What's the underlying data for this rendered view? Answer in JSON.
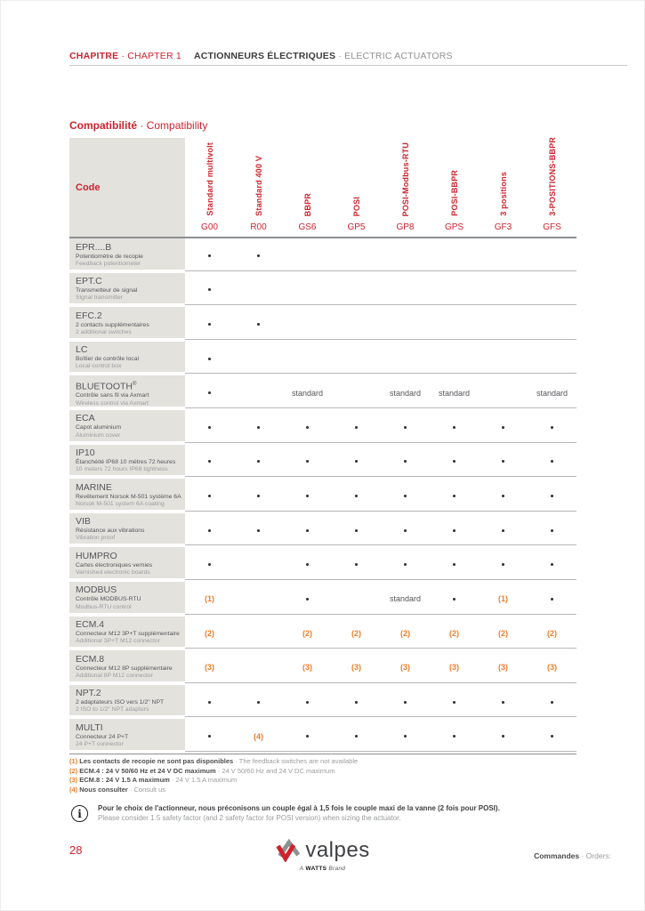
{
  "header": {
    "chapter_fr": "CHAPITRE",
    "chapter_en": " · CHAPTER 1",
    "title_fr": "ACTIONNEURS ÉLECTRIQUES",
    "title_en": " · ELECTRIC ACTUATORS"
  },
  "section_title": {
    "fr": "Compatibilité",
    "en": " · Compatibility"
  },
  "table": {
    "code_header": "Code",
    "columns": [
      {
        "label": "Standard multivolt",
        "code": "G00"
      },
      {
        "label": "Standard 400 V",
        "code": "R00"
      },
      {
        "label": "BBPR",
        "code": "GS6"
      },
      {
        "label": "POSI",
        "code": "GP5"
      },
      {
        "label": "POSI-Modbus-RTU",
        "code": "GP8"
      },
      {
        "label": "POSI-BBPR",
        "code": "GPS"
      },
      {
        "label": "3 positions",
        "code": "GF3"
      },
      {
        "label": "3-POSITIONS-BBPR",
        "code": "GFS"
      }
    ],
    "rows": [
      {
        "code": "EPR....B",
        "fr": "Potentiomètre de recopie",
        "en": "Feedback potentiometer",
        "cells": [
          "dot",
          "dot",
          "",
          "",
          "",
          "",
          "",
          ""
        ]
      },
      {
        "code": "EPT.C",
        "fr": "Transmetteur de signal",
        "en": "Signal transmitter",
        "cells": [
          "dot",
          "",
          "",
          "",
          "",
          "",
          "",
          ""
        ]
      },
      {
        "code": "EFC.2",
        "fr": "2 contacts supplémentaires",
        "en": "2 additional switches",
        "cells": [
          "dot",
          "dot",
          "",
          "",
          "",
          "",
          "",
          ""
        ]
      },
      {
        "code": "LC",
        "fr": "Boîtier de contrôle local",
        "en": "Local control box",
        "cells": [
          "dot",
          "",
          "",
          "",
          "",
          "",
          "",
          ""
        ]
      },
      {
        "code": "BLUETOOTH®",
        "fr": "Contrôle sans fil via Axmart",
        "en": "Wireless control via Axmart",
        "cells": [
          "dot",
          "",
          "standard",
          "",
          "standard",
          "standard",
          "",
          "standard"
        ]
      },
      {
        "code": "ECA",
        "fr": "Capot aluminium",
        "en": "Aluminium cover",
        "cells": [
          "dot",
          "dot",
          "dot",
          "dot",
          "dot",
          "dot",
          "dot",
          "dot"
        ]
      },
      {
        "code": "IP10",
        "fr": "Étanchéité IP68 10 mètres 72 heures",
        "en": "10 meters 72 hours IP68 tightness",
        "cells": [
          "dot",
          "dot",
          "dot",
          "dot",
          "dot",
          "dot",
          "dot",
          "dot"
        ]
      },
      {
        "code": "MARINE",
        "fr": "Revêtement Norsok M-501 système 6A",
        "en": "Norsok M-501 system 6A coating",
        "cells": [
          "dot",
          "dot",
          "dot",
          "dot",
          "dot",
          "dot",
          "dot",
          "dot"
        ]
      },
      {
        "code": "VIB",
        "fr": "Résistance aux vibrations",
        "en": "Vibration proof",
        "cells": [
          "dot",
          "dot",
          "dot",
          "dot",
          "dot",
          "dot",
          "dot",
          "dot"
        ]
      },
      {
        "code": "HUMPRO",
        "fr": "Cartes électroniques vernies",
        "en": "Varnished electronic boards",
        "cells": [
          "dot",
          "",
          "dot",
          "dot",
          "dot",
          "dot",
          "dot",
          "dot"
        ]
      },
      {
        "code": "MODBUS",
        "fr": "Contrôle MODBUS-RTU",
        "en": "Modbus-RTU control",
        "cells": [
          "(1)",
          "",
          "dot",
          "",
          "standard",
          "dot",
          "(1)",
          "dot"
        ]
      },
      {
        "code": "ECM.4",
        "fr": "Connecteur M12 3P+T supplémentaire",
        "en": "Additional 3P+T M12 connector",
        "cells": [
          "(2)",
          "",
          "(2)",
          "(2)",
          "(2)",
          "(2)",
          "(2)",
          "(2)"
        ]
      },
      {
        "code": "ECM.8",
        "fr": "Connecteur M12 8P supplémentaire",
        "en": "Additional 8P M12 connector",
        "cells": [
          "(3)",
          "",
          "(3)",
          "(3)",
          "(3)",
          "(3)",
          "(3)",
          "(3)"
        ]
      },
      {
        "code": "NPT.2",
        "fr": "2 adaptateurs ISO vers 1/2\" NPT",
        "en": "2 ISO to 1/2\" NPT adapters",
        "cells": [
          "dot",
          "dot",
          "dot",
          "dot",
          "dot",
          "dot",
          "dot",
          "dot"
        ]
      },
      {
        "code": "MULTI",
        "fr": "Connecteur 24 P+T",
        "en": "24 P+T connector",
        "cells": [
          "dot",
          "(4)",
          "dot",
          "dot",
          "dot",
          "dot",
          "dot",
          "dot"
        ]
      }
    ]
  },
  "footnotes": {
    "separator": " · ",
    "items": [
      {
        "marker": "(1)",
        "fr": "Les contacts de recopie ne sont pas disponibles",
        "en": "The feedback switches are not available"
      },
      {
        "marker": "(2)",
        "fr": "ECM.4 : 24 V 50/60 Hz et 24 V DC maximum",
        "en": "24 V 50/60 Hz and 24 V DC maximum"
      },
      {
        "marker": "(3)",
        "fr": "ECM.8 : 24 V 1.5 A maximum",
        "en": "24 V 1.5 A maximum"
      },
      {
        "marker": "(4)",
        "fr": "Nous consulter",
        "en": "Consult us"
      }
    ]
  },
  "note": {
    "fr": "Pour le choix de l'actionneur, nous préconisons un couple égal à 1,5 fois le couple maxi de la vanne (2 fois pour POSI).",
    "en": "Please consider 1.5 safety factor (and 2 safety factor for POSI version) when sizing the actuator.",
    "icon": "info-icon",
    "icon_glyph": "i"
  },
  "footer": {
    "page_number": "28",
    "logo_text": "valpes",
    "tagline_a": "A",
    "tagline_watts": "WATTS",
    "tagline_brand": "Brand",
    "orders_fr": "Commandes",
    "orders_en": " · Orders:"
  },
  "colors": {
    "accent_red": "#cf232e",
    "marker_orange": "#ee7d28",
    "label_background": "#e3e2dd",
    "text_dark": "#55565a",
    "text_light": "#9a9c9e"
  }
}
